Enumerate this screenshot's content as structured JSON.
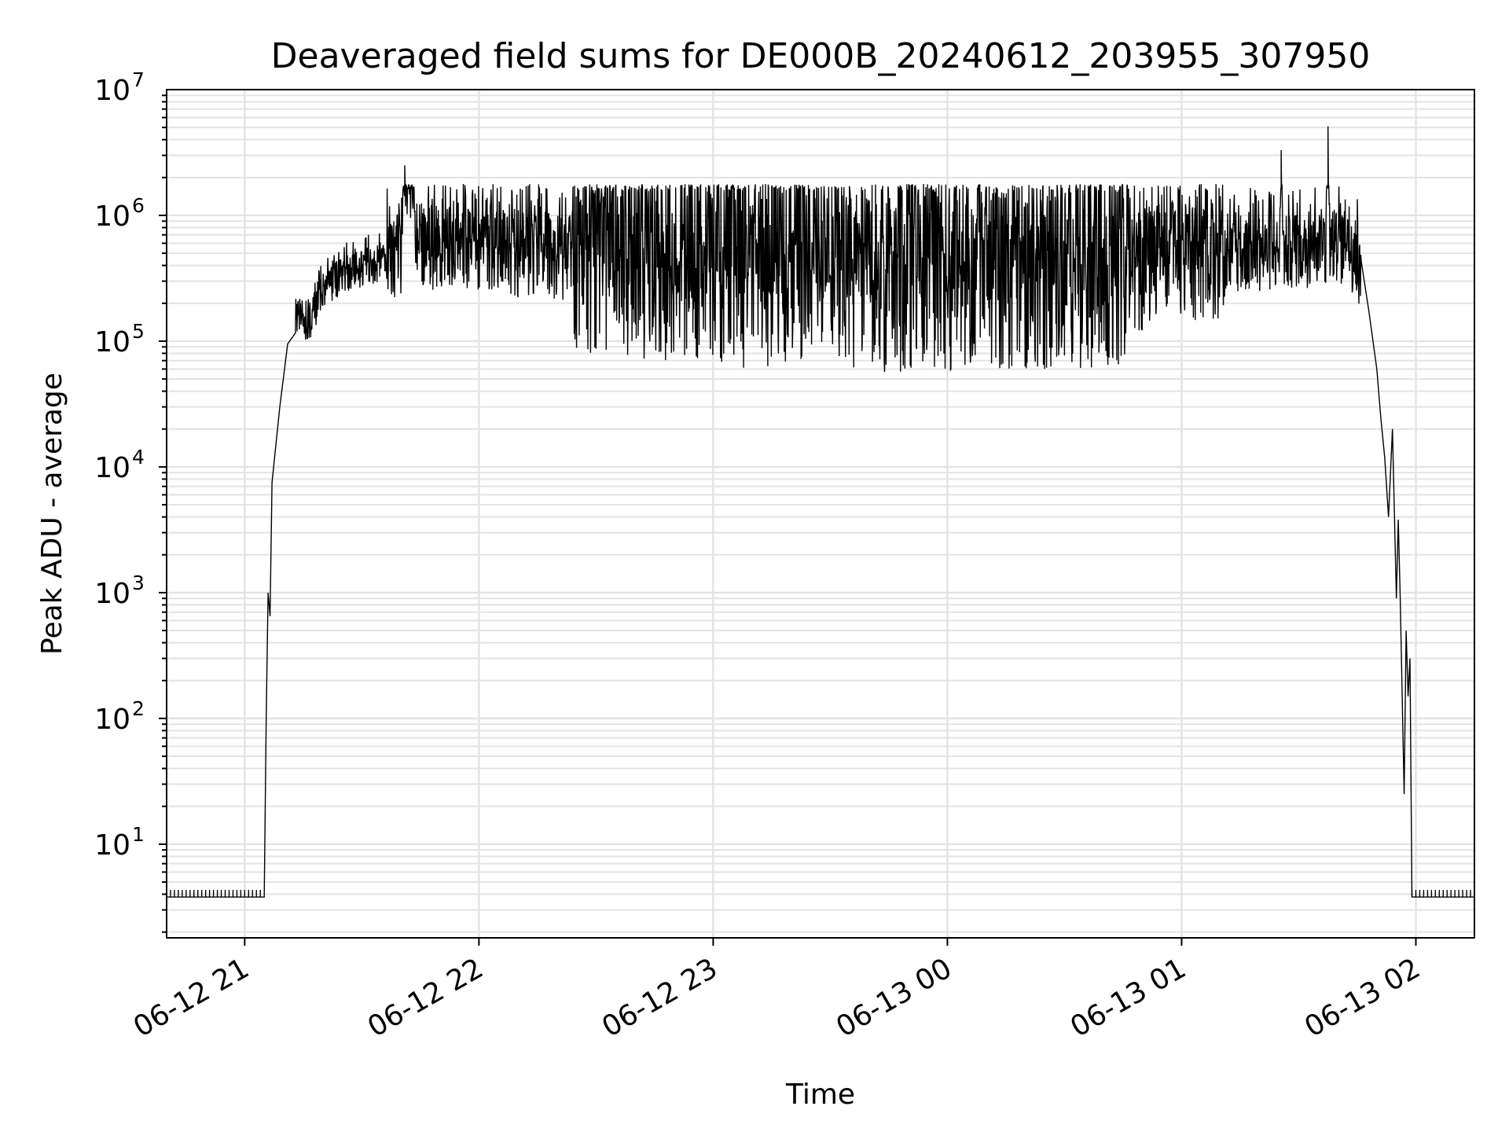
{
  "chart_data": {
    "type": "line",
    "title": "Deaveraged field sums for DE000B_20240612_203955_307950",
    "xlabel": "Time",
    "ylabel": "Peak ADU - average",
    "yscale": "log",
    "ylim": [
      1.8,
      10000000
    ],
    "xlim": [
      "2024-06-12 20:40:00",
      "2024-06-13 02:15:00"
    ],
    "grid": "on",
    "x_ticks": [
      "06-12 21",
      "06-12 22",
      "06-12 23",
      "06-13 00",
      "06-13 01",
      "06-13 02"
    ],
    "y_ticks": [
      "10^1",
      "10^2",
      "10^3",
      "10^4",
      "10^5",
      "10^6",
      "10^7"
    ],
    "series": [
      {
        "color": "#000000",
        "points": [
          [
            "2024-06-12 20:40:00",
            3.8
          ],
          [
            "2024-06-12 21:05:00",
            3.8
          ],
          [
            "2024-06-12 21:05:30",
            100
          ],
          [
            "2024-06-12 21:06:00",
            1000
          ],
          [
            "2024-06-12 21:06:30",
            650
          ],
          [
            "2024-06-12 21:07:00",
            7500
          ],
          [
            "2024-06-12 21:09:00",
            30000
          ],
          [
            "2024-06-12 21:11:00",
            95000
          ],
          [
            "2024-06-12 21:13:00",
            160000
          ],
          [
            "2024-06-12 21:16:00",
            130000
          ],
          [
            "2024-06-12 21:20:00",
            250000
          ],
          [
            "2024-06-12 21:25:00",
            330000
          ],
          [
            "2024-06-12 21:30:00",
            380000
          ],
          [
            "2024-06-12 21:35:00",
            420000
          ],
          [
            "2024-06-12 21:40:00",
            500000
          ],
          [
            "2024-06-12 21:41:00",
            2500000
          ],
          [
            "2024-06-12 21:45:00",
            520000
          ],
          [
            "2024-06-12 21:55:00",
            600000
          ],
          [
            "2024-06-12 22:10:00",
            500000
          ],
          [
            "2024-06-12 22:30:00",
            450000
          ],
          [
            "2024-06-12 22:45:00",
            380000
          ],
          [
            "2024-06-12 23:00:00",
            350000
          ],
          [
            "2024-06-12 23:20:00",
            330000
          ],
          [
            "2024-06-12 23:35:00",
            300000
          ],
          [
            "2024-06-12 23:50:00",
            320000
          ],
          [
            "2024-06-13 00:10:00",
            300000
          ],
          [
            "2024-06-13 00:30:00",
            330000
          ],
          [
            "2024-06-13 00:50:00",
            380000
          ],
          [
            "2024-06-13 01:00:00",
            450000
          ],
          [
            "2024-06-13 01:15:00",
            480000
          ],
          [
            "2024-06-13 01:25:00",
            500000
          ],
          [
            "2024-06-13 01:25:30",
            3300000
          ],
          [
            "2024-06-13 01:26:00",
            500000
          ],
          [
            "2024-06-13 01:37:00",
            550000
          ],
          [
            "2024-06-13 01:37:30",
            5100000
          ],
          [
            "2024-06-13 01:38:00",
            550000
          ],
          [
            "2024-06-13 01:42:00",
            550000
          ],
          [
            "2024-06-13 01:45:00",
            400000
          ],
          [
            "2024-06-13 01:48:00",
            170000
          ],
          [
            "2024-06-13 01:50:00",
            60000
          ],
          [
            "2024-06-13 01:51:00",
            25000
          ],
          [
            "2024-06-13 01:52:00",
            12000
          ],
          [
            "2024-06-13 01:53:00",
            4000
          ],
          [
            "2024-06-13 01:54:00",
            20000
          ],
          [
            "2024-06-13 01:55:00",
            900
          ],
          [
            "2024-06-13 01:55:30",
            3800
          ],
          [
            "2024-06-13 01:56:00",
            900
          ],
          [
            "2024-06-13 01:57:00",
            25
          ],
          [
            "2024-06-13 01:57:30",
            500
          ],
          [
            "2024-06-13 01:58:00",
            150
          ],
          [
            "2024-06-13 01:58:30",
            300
          ],
          [
            "2024-06-13 01:59:00",
            3.8
          ],
          [
            "2024-06-13 02:15:00",
            3.8
          ]
        ]
      }
    ]
  }
}
